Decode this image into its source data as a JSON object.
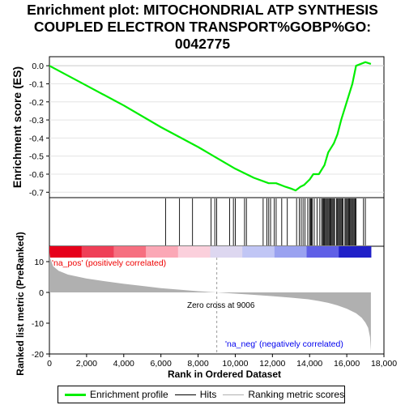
{
  "title_lines": [
    "Enrichment plot: MITOCHONDRIAL ATP SYNTHESIS",
    "COUPLED ELECTRON TRANSPORT%GOBP%GO:",
    "0042775"
  ],
  "chart_data": {
    "type": "line",
    "xlabel": "Rank in Ordered Dataset",
    "ylabel_top": "Enrichment score (ES)",
    "ylabel_bottom": "Ranked list metric (PreRanked)",
    "x_ticks": [
      0,
      2000,
      4000,
      6000,
      8000,
      10000,
      12000,
      14000,
      16000,
      18000
    ],
    "x_tick_labels": [
      "0",
      "2,000",
      "4,000",
      "6,000",
      "8,000",
      "10,000",
      "12,000",
      "14,000",
      "16,000",
      "18,000"
    ],
    "xlim": [
      0,
      18000
    ],
    "es_ylim": [
      -0.73,
      0.05
    ],
    "es_ticks": [
      0.0,
      -0.1,
      -0.2,
      -0.3,
      -0.4,
      -0.5,
      -0.6,
      -0.7
    ],
    "es_tick_labels": [
      "0.0",
      "-0.1",
      "-0.2",
      "-0.3",
      "-0.4",
      "-0.5",
      "-0.6",
      "-0.7"
    ],
    "metric_ylim": [
      -20,
      15
    ],
    "metric_ticks": [
      10,
      0,
      -10,
      -20
    ],
    "metric_tick_labels": [
      "10",
      "0",
      "-10",
      "-20"
    ],
    "enrichment_profile": {
      "x": [
        0,
        2000,
        4000,
        6000,
        8000,
        9000,
        10000,
        11000,
        11800,
        12200,
        12700,
        13000,
        13250,
        13500,
        13700,
        14000,
        14200,
        14500,
        14800,
        15000,
        15300,
        15500,
        15700,
        16000,
        16300,
        16500,
        17000,
        17300
      ],
      "es": [
        0.0,
        -0.11,
        -0.22,
        -0.34,
        -0.45,
        -0.51,
        -0.57,
        -0.62,
        -0.65,
        -0.65,
        -0.67,
        -0.68,
        -0.69,
        -0.67,
        -0.66,
        -0.63,
        -0.6,
        -0.6,
        -0.55,
        -0.48,
        -0.43,
        -0.38,
        -0.3,
        -0.2,
        -0.1,
        0.0,
        0.02,
        0.01
      ]
    },
    "hits": [
      6250,
      7000,
      7700,
      8700,
      8900,
      9000,
      9700,
      9900,
      10000,
      10500,
      10600,
      11500,
      11700,
      11800,
      11900,
      12100,
      12200,
      12500,
      12800,
      13300,
      13450,
      13550,
      13650,
      13750,
      13900,
      14000,
      14050,
      14100,
      14150,
      14250,
      14400,
      14550,
      14650,
      14700,
      14750,
      14800,
      14850,
      14900,
      14950,
      15000,
      15050,
      15100,
      15150,
      15200,
      15250,
      15300,
      15350,
      15450,
      15500,
      15550,
      15600,
      15650,
      15700,
      15750,
      15800,
      15900,
      15950,
      16000,
      16050,
      16100,
      16150,
      16200,
      16250,
      16300,
      16350,
      16400,
      16450,
      16500,
      16900,
      17000
    ],
    "metric_curve": {
      "x": [
        0,
        50,
        200,
        500,
        1000,
        2000,
        3000,
        4000,
        5000,
        6000,
        7000,
        8000,
        9006,
        10000,
        11000,
        12000,
        13000,
        14000,
        14500,
        15000,
        15500,
        16000,
        16500,
        16800,
        17000,
        17150,
        17250,
        17300
      ],
      "y": [
        13,
        11,
        8.5,
        7,
        5.8,
        4.5,
        3.6,
        2.8,
        2.1,
        1.4,
        0.9,
        0.4,
        0.0,
        -0.4,
        -0.8,
        -1.2,
        -1.7,
        -2.3,
        -2.8,
        -3.4,
        -4.2,
        -5.3,
        -6.8,
        -8.2,
        -9.8,
        -11.5,
        -14.5,
        -19
      ]
    },
    "zero_cross_rank": 9006,
    "zero_cross_label": "Zero cross at 9006",
    "pos_label": "'na_pos' (positively correlated)",
    "neg_label": "'na_neg' (negatively correlated)",
    "colors": {
      "profile": "#00ee00",
      "hits": "#000000",
      "metric_fill": "#b0b0b0",
      "pos_text": "#ee0000",
      "neg_text": "#0000ee"
    },
    "heatmap_colors": [
      "#e6001a",
      "#ef3f57",
      "#f66f80",
      "#fba8b6",
      "#fbd0dc",
      "#ddd7f0",
      "#c1c6f5",
      "#9aa2f0",
      "#5f5fe6",
      "#2020c8"
    ],
    "legend": {
      "profile": "Enrichment profile",
      "hits": "Hits",
      "ranking": "Ranking metric scores"
    }
  }
}
